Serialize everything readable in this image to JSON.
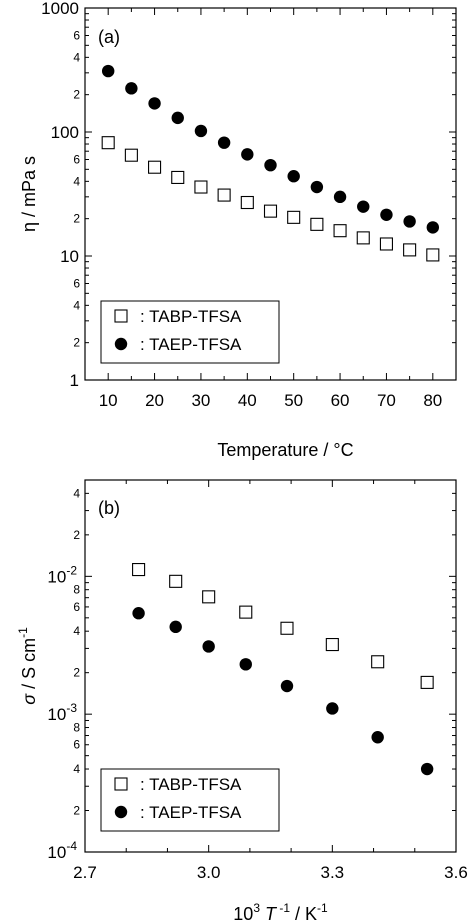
{
  "chart_data": [
    {
      "type": "scatter",
      "panel_label": "(a)",
      "xlabel": "Temperature / °C",
      "ylabel": "η / mPa s",
      "yscale": "log",
      "xlim": [
        5,
        85
      ],
      "ylim": [
        1,
        1000
      ],
      "x_ticks": [
        "10",
        "20",
        "30",
        "40",
        "50",
        "60",
        "70",
        "80"
      ],
      "y_major_ticks": [
        "1",
        "10",
        "100",
        "1000"
      ],
      "y_minor_labels": [
        "2",
        "4",
        "6"
      ],
      "legend_position": "bottom-left",
      "series": [
        {
          "name": ": TABP-TFSA",
          "marker": "open-square",
          "x": [
            10,
            15,
            20,
            25,
            30,
            35,
            40,
            45,
            50,
            55,
            60,
            65,
            70,
            75,
            80
          ],
          "y": [
            82,
            65,
            52,
            43,
            36,
            31,
            27,
            23,
            20.5,
            18,
            16,
            14,
            12.5,
            11.2,
            10.2
          ]
        },
        {
          "name": ": TAEP-TFSA",
          "marker": "filled-circle",
          "x": [
            10,
            15,
            20,
            25,
            30,
            35,
            40,
            45,
            50,
            55,
            60,
            65,
            70,
            75,
            80
          ],
          "y": [
            310,
            225,
            170,
            130,
            102,
            82,
            66,
            54,
            44,
            36,
            30,
            25,
            21.5,
            19,
            17
          ]
        }
      ]
    },
    {
      "type": "scatter",
      "panel_label": "(b)",
      "xlabel_base": "10",
      "xlabel_sup1": "3",
      "xlabel_T": "T",
      "xlabel_sup2": "-1",
      "xlabel_tail": " / K",
      "xlabel_sup3": "-1",
      "ylabel_sigma": "σ",
      "ylabel_mid": " / S cm",
      "ylabel_sup": "-1",
      "yscale": "log",
      "xlim": [
        2.7,
        3.6
      ],
      "ylim": [
        0.0001,
        0.05
      ],
      "x_ticks": [
        "2.7",
        "3.0",
        "3.3",
        "3.6"
      ],
      "y_major_ticks": [
        {
          "base": "10",
          "exp": "-2"
        },
        {
          "base": "10",
          "exp": "-3"
        },
        {
          "base": "10",
          "exp": "-4"
        }
      ],
      "y_minor_labels": [
        "2",
        "4",
        "6",
        "8"
      ],
      "legend_position": "bottom-left",
      "series": [
        {
          "name": ": TABP-TFSA",
          "marker": "open-square",
          "x": [
            2.83,
            2.92,
            3.0,
            3.09,
            3.19,
            3.3,
            3.41,
            3.53
          ],
          "y": [
            0.0112,
            0.0092,
            0.0071,
            0.0055,
            0.0042,
            0.0032,
            0.0024,
            0.0017
          ]
        },
        {
          "name": ": TAEP-TFSA",
          "marker": "filled-circle",
          "x": [
            2.83,
            2.92,
            3.0,
            3.09,
            3.19,
            3.3,
            3.41,
            3.53
          ],
          "y": [
            0.0054,
            0.0043,
            0.0031,
            0.0023,
            0.0016,
            0.0011,
            0.00068,
            0.0004
          ]
        }
      ]
    }
  ]
}
